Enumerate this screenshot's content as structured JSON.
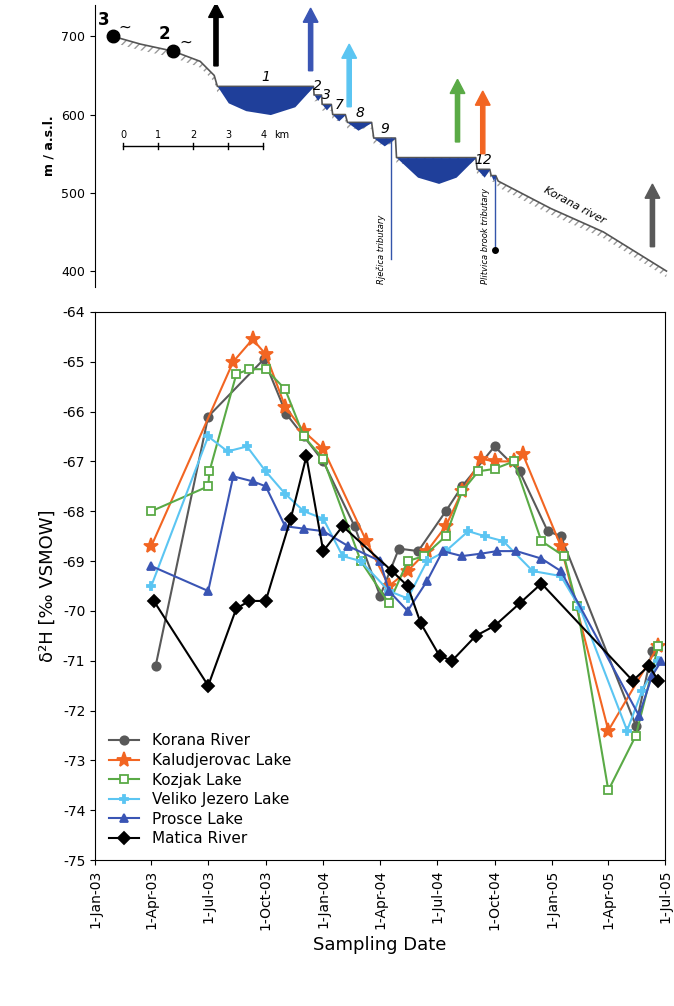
{
  "chart_data": [
    {
      "type": "profile",
      "ylabel": "m / a.s.l.",
      "xlim": [
        0,
        16.4
      ],
      "ylim": [
        380,
        740
      ],
      "yticks": [
        400,
        500,
        600,
        700
      ],
      "tick_labels": "y",
      "color": "#1f3f9a",
      "x": [
        0.51,
        1.3,
        2.23,
        3.0,
        3.4,
        3.49,
        6.23,
        6.25,
        6.46,
        6.48,
        6.74,
        6.78,
        7.14,
        7.2,
        7.89,
        7.95,
        8.57,
        8.6,
        10.86,
        10.9,
        11.26,
        11.3,
        11.43,
        11.5,
        13.0,
        14.5,
        16.3
      ],
      "elevation": [
        700,
        690,
        681,
        668,
        650,
        636,
        636,
        625,
        625,
        613,
        613,
        600,
        600,
        590,
        590,
        570,
        570,
        545,
        545,
        530,
        530,
        522,
        522,
        515,
        480,
        450,
        400
      ],
      "lakes": [
        {
          "label": "1",
          "surface": 636,
          "x": [
            3.49,
            3.8,
            4.3,
            5.0,
            5.7,
            6.23
          ],
          "bottom": [
            636,
            615,
            605,
            600,
            610,
            636
          ]
        },
        {
          "label": "2",
          "surface": 625,
          "x": [
            6.25,
            6.35,
            6.46
          ],
          "bottom": [
            625,
            618,
            625
          ]
        },
        {
          "label": "3",
          "surface": 613,
          "x": [
            6.48,
            6.6,
            6.74
          ],
          "bottom": [
            613,
            606,
            613
          ]
        },
        {
          "label": "7",
          "surface": 600,
          "x": [
            6.78,
            6.95,
            7.14
          ],
          "bottom": [
            600,
            592,
            600
          ]
        },
        {
          "label": "8",
          "surface": 590,
          "x": [
            7.2,
            7.5,
            7.89
          ],
          "bottom": [
            590,
            580,
            590
          ]
        },
        {
          "label": "9",
          "surface": 570,
          "x": [
            7.95,
            8.25,
            8.57
          ],
          "bottom": [
            570,
            560,
            570
          ]
        },
        {
          "label": null,
          "surface": 545,
          "x": [
            8.6,
            9.2,
            9.8,
            10.3,
            10.86
          ],
          "bottom": [
            545,
            520,
            512,
            520,
            545
          ]
        },
        {
          "label": "12",
          "surface": 530,
          "x": [
            10.9,
            11.1,
            11.26
          ],
          "bottom": [
            530,
            520,
            530
          ]
        },
        {
          "label": null,
          "surface": 522,
          "x": [
            11.3,
            11.36,
            11.43
          ],
          "bottom": [
            522,
            516,
            522
          ]
        }
      ],
      "springs": [
        {
          "label": "3",
          "x": 0.51,
          "elevation": 700,
          "symbol": "~"
        },
        {
          "label": "2",
          "x": 2.23,
          "elevation": 681,
          "symbol": "~"
        }
      ],
      "tributaries": [
        {
          "label": "Rječica tributary",
          "x": 8.43,
          "bottom": 415
        },
        {
          "label": "Plitvica brook tributary",
          "x": 11.4,
          "bottom": 427,
          "marker": "circle"
        }
      ],
      "river_label": "Korana river",
      "scale_bar": {
        "ticks": [
          0,
          1,
          2,
          3,
          4
        ],
        "unit": "km"
      },
      "sampling_sites": [
        {
          "series": "Matica River",
          "x": 3.45
        },
        {
          "series": "Prosce Lake",
          "x": 6.15
        },
        {
          "series": "Veliko Jezero Lake",
          "x": 7.25
        },
        {
          "series": "Kozjak Lake",
          "x": 10.34
        },
        {
          "series": "Kaludjerovac Lake",
          "x": 11.06
        },
        {
          "series": "Korana River",
          "x": 15.9
        }
      ]
    },
    {
      "type": "line",
      "xlabel": "Sampling Date",
      "ylabel": "δ²H [‰ VSMOW]",
      "xlim": [
        "2003-01-01",
        "2005-07-01"
      ],
      "xticks": [
        {
          "value": "2003-01-01",
          "label": "1-Jan-03"
        },
        {
          "value": "2003-04-01",
          "label": "1-Apr-03"
        },
        {
          "value": "2003-07-01",
          "label": "1-Jul-03"
        },
        {
          "value": "2003-10-01",
          "label": "1-Oct-03"
        },
        {
          "value": "2004-01-01",
          "label": "1-Jan-04"
        },
        {
          "value": "2004-04-01",
          "label": "1-Apr-04"
        },
        {
          "value": "2004-07-01",
          "label": "1-Jul-04"
        },
        {
          "value": "2004-10-01",
          "label": "1-Oct-04"
        },
        {
          "value": "2005-01-01",
          "label": "1-Jan-05"
        },
        {
          "value": "2005-04-01",
          "label": "1-Apr-05"
        },
        {
          "value": "2005-07-01",
          "label": "1-Jul-05"
        }
      ],
      "ylim": [
        -75,
        -64
      ],
      "yticks": [
        -75,
        -74,
        -73,
        -72,
        -71,
        -70,
        -69,
        -68,
        -67,
        -66,
        -65,
        -64
      ],
      "legend": "lower left",
      "series": [
        {
          "name": "Korana River",
          "color": "#595959",
          "marker": "circle",
          "x": [
            "2003-04-08",
            "2003-07-01",
            "2003-09-28",
            "2003-11-03",
            "2003-12-01",
            "2004-01-01",
            "2004-02-20",
            "2004-04-01",
            "2004-05-01",
            "2004-06-01",
            "2004-07-15",
            "2004-08-10",
            "2004-10-01",
            "2004-11-10",
            "2004-12-25",
            "2005-01-15",
            "2005-05-15",
            "2005-06-10"
          ],
          "values": [
            -71.1,
            -66.1,
            -64.95,
            -66.05,
            -66.5,
            -67.0,
            -68.3,
            -69.7,
            -68.75,
            -68.8,
            -68.0,
            -67.5,
            -66.7,
            -67.2,
            -68.4,
            -68.5,
            -72.3,
            -70.8
          ]
        },
        {
          "name": "Kaludjerovac Lake",
          "color": "#f26522",
          "marker": "star",
          "x": [
            "2003-04-01",
            "2003-08-10",
            "2003-09-10",
            "2003-10-01",
            "2003-11-01",
            "2003-12-01",
            "2004-01-01",
            "2004-03-10",
            "2004-04-15",
            "2004-05-15",
            "2004-06-15",
            "2004-07-15",
            "2004-08-10",
            "2004-09-10",
            "2004-10-01",
            "2004-11-01",
            "2004-11-15",
            "2005-01-15",
            "2005-04-01",
            "2005-06-20"
          ],
          "values": [
            -68.7,
            -65.0,
            -64.55,
            -64.85,
            -65.9,
            -66.4,
            -66.75,
            -68.6,
            -69.5,
            -69.2,
            -68.8,
            -68.3,
            -67.6,
            -66.95,
            -67.0,
            -67.0,
            -66.85,
            -68.7,
            -72.4,
            -70.7
          ]
        },
        {
          "name": "Kozjak Lake",
          "color": "#5aaa46",
          "marker": "open_square",
          "x": [
            "2003-04-01",
            "2003-07-01",
            "2003-07-03",
            "2003-08-15",
            "2003-09-05",
            "2003-10-01",
            "2003-11-01",
            "2003-12-01",
            "2004-01-01",
            "2004-03-01",
            "2004-04-15",
            "2004-05-15",
            "2004-06-10",
            "2004-07-15",
            "2004-08-10",
            "2004-09-05",
            "2004-10-01",
            "2004-11-01",
            "2004-12-15",
            "2005-01-20",
            "2005-02-10",
            "2005-04-01",
            "2005-05-15",
            "2005-06-20"
          ],
          "values": [
            -68.0,
            -67.5,
            -67.2,
            -65.25,
            -65.15,
            -65.15,
            -65.55,
            -66.5,
            -66.95,
            -69.0,
            -69.85,
            -69.0,
            -68.9,
            -68.5,
            -67.6,
            -67.2,
            -67.15,
            -67.0,
            -68.6,
            -68.9,
            -69.9,
            -73.6,
            -72.5,
            -70.7
          ]
        },
        {
          "name": "Veliko Jezero Lake",
          "color": "#5bc5f2",
          "marker": "plus",
          "x": [
            "2003-04-01",
            "2003-07-01",
            "2003-08-01",
            "2003-09-01",
            "2003-10-01",
            "2003-11-01",
            "2003-12-01",
            "2004-01-01",
            "2004-02-01",
            "2004-03-01",
            "2004-04-15",
            "2004-05-15",
            "2004-06-15",
            "2004-07-15",
            "2004-08-20",
            "2004-09-15",
            "2004-10-15",
            "2004-12-01",
            "2005-01-15",
            "2005-02-15",
            "2005-05-01",
            "2005-05-25",
            "2005-06-20"
          ],
          "values": [
            -69.5,
            -66.5,
            -66.8,
            -66.7,
            -67.2,
            -67.65,
            -68.0,
            -68.15,
            -68.9,
            -69.0,
            -69.6,
            -69.75,
            -69.0,
            -68.8,
            -68.4,
            -68.5,
            -68.6,
            -69.2,
            -69.3,
            -69.95,
            -72.4,
            -71.6,
            -71.0
          ]
        },
        {
          "name": "Prosce Lake",
          "color": "#3a55b4",
          "marker": "triangle",
          "x": [
            "2003-04-01",
            "2003-07-01",
            "2003-08-10",
            "2003-09-10",
            "2003-10-01",
            "2003-11-01",
            "2003-12-01",
            "2004-01-01",
            "2004-02-10",
            "2004-04-01",
            "2004-04-15",
            "2004-05-15",
            "2004-06-15",
            "2004-07-10",
            "2004-08-10",
            "2004-09-10",
            "2004-10-05",
            "2004-11-05",
            "2004-12-15",
            "2005-01-15",
            "2005-05-20",
            "2005-06-10",
            "2005-06-25"
          ],
          "values": [
            -69.1,
            -69.6,
            -67.3,
            -67.4,
            -67.5,
            -68.3,
            -68.35,
            -68.4,
            -68.7,
            -69.0,
            -69.6,
            -70.0,
            -69.4,
            -68.8,
            -68.9,
            -68.85,
            -68.8,
            -68.8,
            -68.95,
            -69.2,
            -72.1,
            -71.3,
            -71.0
          ]
        },
        {
          "name": "Matica River",
          "color": "#000000",
          "marker": "diamond",
          "x": [
            "2003-04-05",
            "2003-07-01",
            "2003-08-15",
            "2003-09-05",
            "2003-10-01",
            "2003-11-10",
            "2003-12-05",
            "2004-01-01",
            "2004-02-01",
            "2004-04-20",
            "2004-05-15",
            "2004-06-05",
            "2004-07-05",
            "2004-07-25",
            "2004-09-01",
            "2004-10-01",
            "2004-11-10",
            "2004-12-15",
            "2005-05-10",
            "2005-06-05",
            "2005-06-20"
          ],
          "values": [
            -69.8,
            -71.5,
            -69.95,
            -69.8,
            -69.8,
            -68.15,
            -66.9,
            -68.8,
            -68.3,
            -69.2,
            -69.5,
            -70.25,
            -70.9,
            -71.0,
            -70.5,
            -70.3,
            -69.85,
            -69.45,
            -71.4,
            -71.1,
            -71.4
          ]
        }
      ]
    }
  ]
}
